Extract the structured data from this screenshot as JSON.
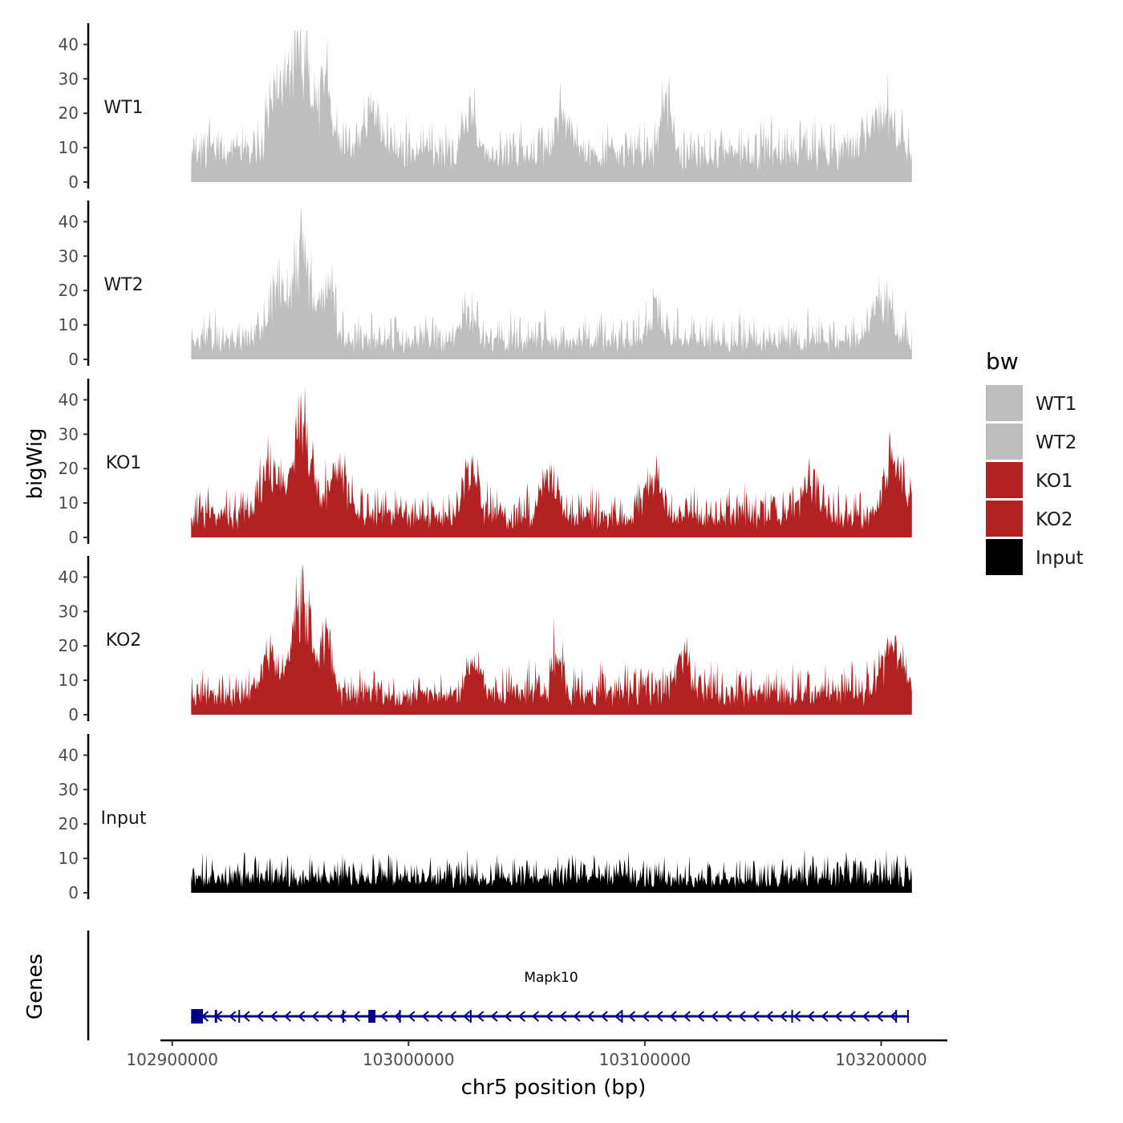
{
  "chart_data": {
    "type": "area",
    "title": "",
    "ylabel": "bigWig",
    "xlabel": "chr5 position (bp)",
    "gene_track_label": "Genes",
    "xlim": [
      102895000,
      103228000
    ],
    "x_ticks": [
      102900000,
      103000000,
      103100000,
      103200000
    ],
    "x_tick_labels": [
      "102900000",
      "103000000",
      "103100000",
      "103200000"
    ],
    "data_range": [
      102908000,
      103213000
    ],
    "ylim": [
      0,
      45
    ],
    "y_ticks": [
      0,
      10,
      20,
      30,
      40
    ],
    "y_tick_labels": [
      "0",
      "10",
      "20",
      "30",
      "40"
    ],
    "series": [
      {
        "name": "WT1",
        "color": "#bebebe",
        "baseline": 9,
        "noise": 6,
        "seed": 11,
        "peaks": [
          {
            "x": 102945000,
            "y": 28,
            "w": 5000
          },
          {
            "x": 102954000,
            "y": 42,
            "w": 5000
          },
          {
            "x": 102965000,
            "y": 22,
            "w": 4000
          },
          {
            "x": 102985000,
            "y": 12,
            "w": 6000
          },
          {
            "x": 103026000,
            "y": 16,
            "w": 4000
          },
          {
            "x": 103065000,
            "y": 13,
            "w": 5000
          },
          {
            "x": 103109000,
            "y": 22,
            "w": 2500
          },
          {
            "x": 103200000,
            "y": 13,
            "w": 8000
          }
        ]
      },
      {
        "name": "WT2",
        "color": "#bebebe",
        "baseline": 5,
        "noise": 6,
        "seed": 23,
        "peaks": [
          {
            "x": 102945000,
            "y": 18,
            "w": 5000
          },
          {
            "x": 102955000,
            "y": 33,
            "w": 5000
          },
          {
            "x": 102966000,
            "y": 16,
            "w": 4000
          },
          {
            "x": 103025000,
            "y": 11,
            "w": 5000
          },
          {
            "x": 103105000,
            "y": 13,
            "w": 4000
          },
          {
            "x": 103200000,
            "y": 14,
            "w": 6000
          }
        ]
      },
      {
        "name": "KO1",
        "color": "#b22222",
        "baseline": 6,
        "noise": 6,
        "seed": 37,
        "peaks": [
          {
            "x": 102942000,
            "y": 16,
            "w": 6000
          },
          {
            "x": 102955000,
            "y": 36,
            "w": 5000
          },
          {
            "x": 102970000,
            "y": 14,
            "w": 6000
          },
          {
            "x": 103026000,
            "y": 18,
            "w": 4000
          },
          {
            "x": 103060000,
            "y": 12,
            "w": 5000
          },
          {
            "x": 103103000,
            "y": 13,
            "w": 5000
          },
          {
            "x": 103170000,
            "y": 14,
            "w": 5000
          },
          {
            "x": 103205000,
            "y": 18,
            "w": 6000
          }
        ]
      },
      {
        "name": "KO2",
        "color": "#b22222",
        "baseline": 6,
        "noise": 6,
        "seed": 53,
        "peaks": [
          {
            "x": 102942000,
            "y": 14,
            "w": 5000
          },
          {
            "x": 102955000,
            "y": 34,
            "w": 5000
          },
          {
            "x": 102965000,
            "y": 22,
            "w": 3000
          },
          {
            "x": 103028000,
            "y": 11,
            "w": 4000
          },
          {
            "x": 103063000,
            "y": 15,
            "w": 3000
          },
          {
            "x": 103116000,
            "y": 14,
            "w": 4000
          },
          {
            "x": 103205000,
            "y": 17,
            "w": 6000
          }
        ]
      },
      {
        "name": "Input",
        "color": "#000000",
        "baseline": 4,
        "noise": 5,
        "seed": 71,
        "peaks": []
      }
    ],
    "legend": {
      "title": "bw",
      "position": "right",
      "entries": [
        {
          "label": "WT1",
          "color": "#bebebe"
        },
        {
          "label": "WT2",
          "color": "#bebebe"
        },
        {
          "label": "KO1",
          "color": "#b22222"
        },
        {
          "label": "KO2",
          "color": "#b22222"
        },
        {
          "label": "Input",
          "color": "#000000"
        }
      ]
    },
    "gene": {
      "name": "Mapk10",
      "color": "#00008b",
      "strand": "-",
      "start": 102908000,
      "end": 103211000,
      "exons": [
        {
          "start": 102908000,
          "end": 102913000
        },
        {
          "start": 102918000,
          "end": 102919000
        },
        {
          "start": 102928000,
          "end": 102928600
        },
        {
          "start": 102972000,
          "end": 102972500
        },
        {
          "start": 102983000,
          "end": 102986000
        },
        {
          "start": 102996000,
          "end": 102996500
        },
        {
          "start": 103026000,
          "end": 103026500
        },
        {
          "start": 103090000,
          "end": 103090500
        },
        {
          "start": 103162000,
          "end": 103162600
        },
        {
          "start": 103206000,
          "end": 103206500
        },
        {
          "start": 103211000,
          "end": 103211600
        }
      ]
    }
  }
}
